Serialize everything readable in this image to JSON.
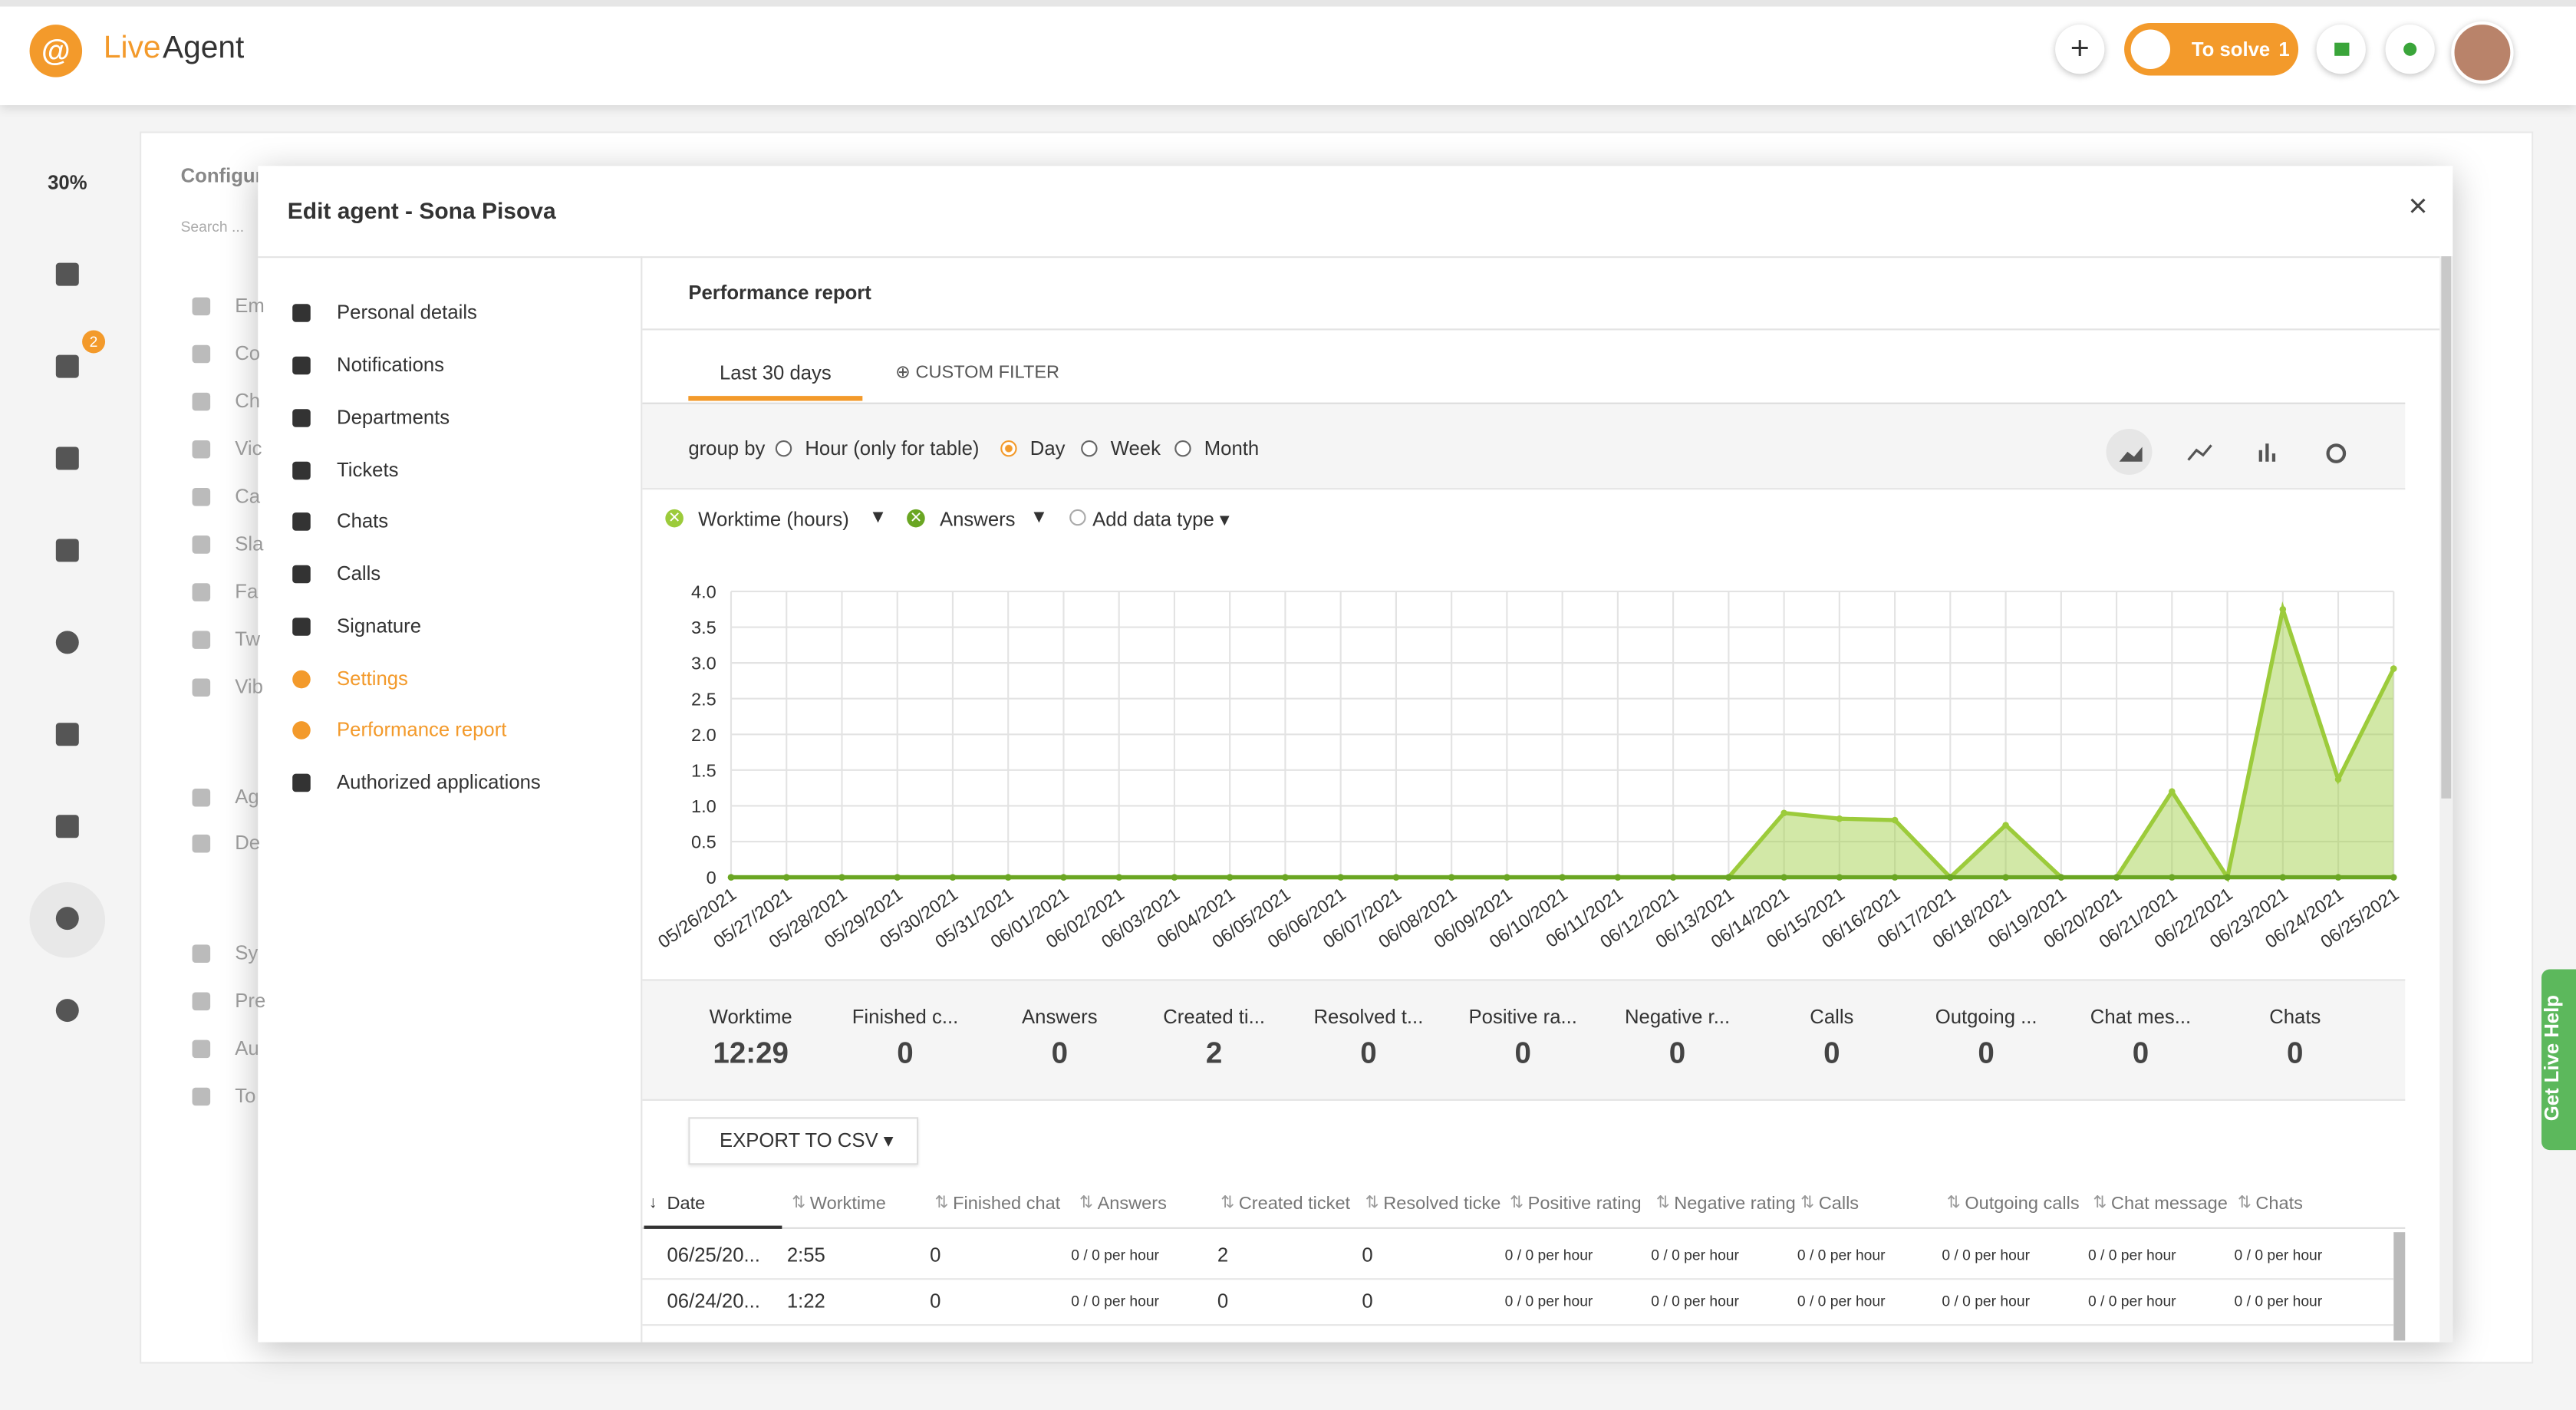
{
  "header": {
    "logo_live": "Live",
    "logo_agent": "Agent",
    "to_solve": "To solve",
    "to_solve_count": 1
  },
  "sidebar": {
    "zoom": "30%",
    "mail_badge": 2
  },
  "background": {
    "title": "Configur",
    "search": "Search ...",
    "items": [
      "Em",
      "Co",
      "Ch",
      "Vic",
      "Ca",
      "Sla",
      "Fa",
      "Tw",
      "Vib",
      "Ag",
      "De",
      "Sy",
      "Pre",
      "Au",
      "To"
    ]
  },
  "modal": {
    "title": "Edit agent - Sona Pisova",
    "menu": [
      "Personal details",
      "Notifications",
      "Departments",
      "Tickets",
      "Chats",
      "Calls",
      "Signature",
      "Settings",
      "Performance report",
      "Authorized applications"
    ]
  },
  "report": {
    "title": "Performance report",
    "tabs": [
      "Last 30 days",
      "CUSTOM FILTER"
    ],
    "group_by": "group by",
    "group_options": [
      "Hour (only for table)",
      "Day",
      "Week",
      "Month"
    ],
    "add_data_type": "Add data type"
  },
  "chart_data": {
    "type": "area",
    "x": [
      "05/26/2021",
      "05/27/2021",
      "05/28/2021",
      "05/29/2021",
      "05/30/2021",
      "05/31/2021",
      "06/01/2021",
      "06/02/2021",
      "06/03/2021",
      "06/04/2021",
      "06/05/2021",
      "06/06/2021",
      "06/07/2021",
      "06/08/2021",
      "06/09/2021",
      "06/10/2021",
      "06/11/2021",
      "06/12/2021",
      "06/13/2021",
      "06/14/2021",
      "06/15/2021",
      "06/16/2021",
      "06/17/2021",
      "06/18/2021",
      "06/19/2021",
      "06/20/2021",
      "06/21/2021",
      "06/22/2021",
      "06/23/2021",
      "06/24/2021",
      "06/25/2021"
    ],
    "series": [
      {
        "name": "Worktime (hours)",
        "color": "#9ccb3b",
        "values": [
          0,
          0,
          0,
          0,
          0,
          0,
          0,
          0,
          0,
          0,
          0,
          0,
          0,
          0,
          0,
          0,
          0,
          0,
          0,
          0.9,
          0.82,
          0.8,
          0,
          0.73,
          0,
          0,
          1.2,
          0,
          3.75,
          1.37,
          2.92
        ]
      },
      {
        "name": "Answers",
        "color": "#6aa623",
        "values": [
          0,
          0,
          0,
          0,
          0,
          0,
          0,
          0,
          0,
          0,
          0,
          0,
          0,
          0,
          0,
          0,
          0,
          0,
          0,
          0,
          0,
          0,
          0,
          0,
          0,
          0,
          0,
          0,
          0,
          0,
          0
        ]
      }
    ],
    "ylim": [
      0,
      4
    ],
    "yticks": [
      0,
      0.5,
      {
        "value": 1,
        "label": "1.0"
      },
      1.5,
      {
        "value": 2,
        "label": "2.0"
      },
      2.5,
      {
        "value": 3,
        "label": "3.0"
      },
      3.5,
      {
        "value": 4,
        "label": "4.0"
      }
    ],
    "grid": true
  },
  "summary": [
    {
      "label": "Worktime",
      "value": "12:29"
    },
    {
      "label": "Finished c...",
      "value": 0
    },
    {
      "label": "Answers",
      "value": 0
    },
    {
      "label": "Created ti...",
      "value": 2
    },
    {
      "label": "Resolved t...",
      "value": 0
    },
    {
      "label": "Positive ra...",
      "value": 0
    },
    {
      "label": "Negative r...",
      "value": 0
    },
    {
      "label": "Calls",
      "value": 0
    },
    {
      "label": "Outgoing ...",
      "value": 0
    },
    {
      "label": "Chat mes...",
      "value": 0
    },
    {
      "label": "Chats",
      "value": 0
    }
  ],
  "export": "EXPORT TO CSV",
  "table": {
    "columns": [
      "Date",
      "Worktime",
      "Finished chat",
      "Answers",
      "Created ticket",
      "Resolved ticke",
      "Positive rating",
      "Negative rating",
      "Calls",
      "Outgoing calls",
      "Chat message",
      "Chats"
    ],
    "rows": [
      [
        "06/25/20...",
        "2:55",
        "0",
        "0 / 0 per hour",
        "2",
        "0",
        "0 / 0 per hour",
        "0 / 0 per hour",
        "0 / 0 per hour",
        "0 / 0 per hour",
        "0 / 0 per hour",
        "0 / 0 per hour"
      ],
      [
        "06/24/20...",
        "1:22",
        "0",
        "0 / 0 per hour",
        "0",
        "0",
        "0 / 0 per hour",
        "0 / 0 per hour",
        "0 / 0 per hour",
        "0 / 0 per hour",
        "0 / 0 per hour",
        "0 / 0 per hour"
      ]
    ]
  },
  "help": "Get Live Help"
}
